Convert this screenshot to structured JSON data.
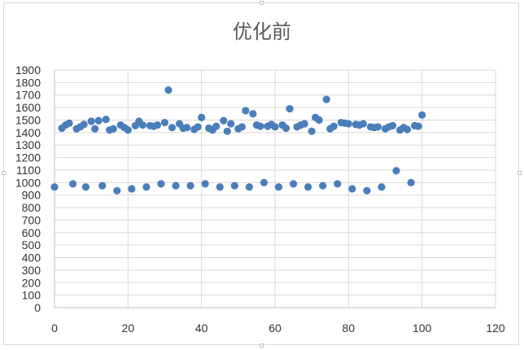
{
  "chart_data": {
    "type": "scatter",
    "title": "优化前",
    "xlabel": "",
    "ylabel": "",
    "xlim": [
      0,
      120
    ],
    "ylim": [
      0,
      1900
    ],
    "xticks": [
      0,
      20,
      40,
      60,
      80,
      100,
      120
    ],
    "yticks": [
      0,
      100,
      200,
      300,
      400,
      500,
      600,
      700,
      800,
      900,
      1000,
      1100,
      1200,
      1300,
      1400,
      1500,
      1600,
      1700,
      1800,
      1900
    ],
    "grid": true,
    "legend": "none",
    "marker_color": "#4a7ebb",
    "points": [
      [
        0,
        965
      ],
      [
        2,
        1435
      ],
      [
        3,
        1460
      ],
      [
        4,
        1475
      ],
      [
        5,
        990
      ],
      [
        6,
        1430
      ],
      [
        7,
        1445
      ],
      [
        8,
        1465
      ],
      [
        8.5,
        965
      ],
      [
        10,
        1490
      ],
      [
        11,
        1430
      ],
      [
        12,
        1495
      ],
      [
        13,
        975
      ],
      [
        14,
        1505
      ],
      [
        15,
        1420
      ],
      [
        16,
        1430
      ],
      [
        17,
        935
      ],
      [
        18,
        1460
      ],
      [
        19,
        1440
      ],
      [
        20,
        1420
      ],
      [
        21,
        950
      ],
      [
        22,
        1455
      ],
      [
        23,
        1490
      ],
      [
        24,
        1460
      ],
      [
        25,
        965
      ],
      [
        26,
        1455
      ],
      [
        27,
        1450
      ],
      [
        28,
        1460
      ],
      [
        29,
        990
      ],
      [
        30,
        1480
      ],
      [
        31,
        1740
      ],
      [
        32,
        1440
      ],
      [
        33,
        975
      ],
      [
        34,
        1470
      ],
      [
        35,
        1435
      ],
      [
        36,
        1440
      ],
      [
        37,
        975
      ],
      [
        38,
        1425
      ],
      [
        39,
        1445
      ],
      [
        40,
        1520
      ],
      [
        41,
        990
      ],
      [
        42,
        1435
      ],
      [
        43,
        1420
      ],
      [
        44,
        1450
      ],
      [
        45,
        965
      ],
      [
        46,
        1495
      ],
      [
        47,
        1410
      ],
      [
        48,
        1470
      ],
      [
        49,
        975
      ],
      [
        50,
        1430
      ],
      [
        51,
        1445
      ],
      [
        52,
        1575
      ],
      [
        53,
        965
      ],
      [
        54,
        1550
      ],
      [
        55,
        1460
      ],
      [
        56,
        1450
      ],
      [
        57,
        1000
      ],
      [
        58,
        1450
      ],
      [
        59,
        1465
      ],
      [
        60,
        1445
      ],
      [
        61,
        965
      ],
      [
        62,
        1460
      ],
      [
        63,
        1435
      ],
      [
        64,
        1590
      ],
      [
        65,
        990
      ],
      [
        66,
        1445
      ],
      [
        67,
        1460
      ],
      [
        68,
        1470
      ],
      [
        69,
        965
      ],
      [
        70,
        1410
      ],
      [
        71,
        1520
      ],
      [
        72,
        1500
      ],
      [
        73,
        975
      ],
      [
        74,
        1665
      ],
      [
        75,
        1430
      ],
      [
        76,
        1450
      ],
      [
        77,
        990
      ],
      [
        78,
        1480
      ],
      [
        79,
        1475
      ],
      [
        80,
        1470
      ],
      [
        81,
        950
      ],
      [
        82,
        1465
      ],
      [
        83,
        1460
      ],
      [
        84,
        1470
      ],
      [
        85,
        935
      ],
      [
        86,
        1445
      ],
      [
        87,
        1440
      ],
      [
        88,
        1445
      ],
      [
        89,
        965
      ],
      [
        90,
        1430
      ],
      [
        91,
        1445
      ],
      [
        92,
        1455
      ],
      [
        93,
        1095
      ],
      [
        94,
        1420
      ],
      [
        95,
        1440
      ],
      [
        96,
        1425
      ],
      [
        97,
        1000
      ],
      [
        98,
        1455
      ],
      [
        99,
        1450
      ],
      [
        100,
        1540
      ]
    ]
  }
}
